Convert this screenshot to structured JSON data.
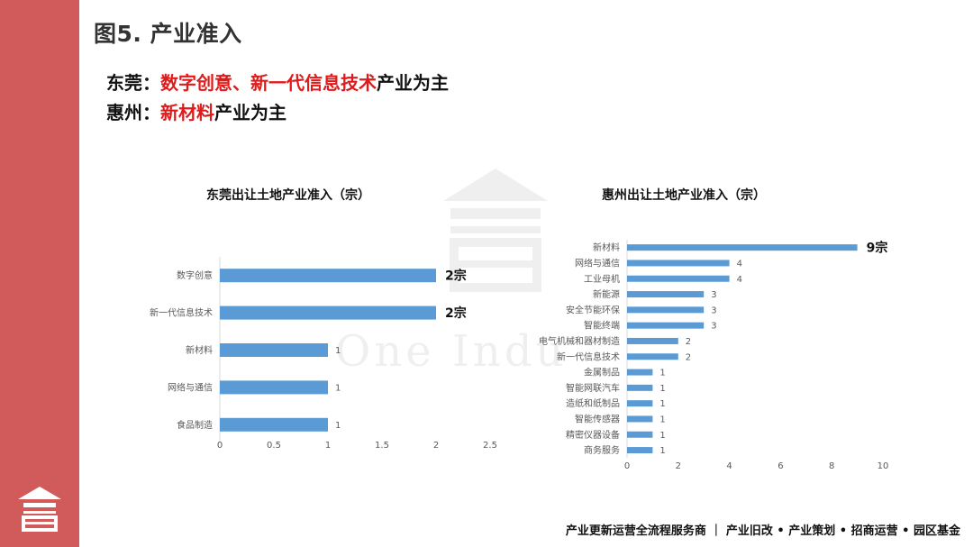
{
  "title": "图5. 产业准入",
  "intro": {
    "line1": {
      "prefix": "东莞：",
      "highlight": "数字创意、新一代信息技术",
      "suffix": "产业为主"
    },
    "line2": {
      "prefix": "惠州：",
      "highlight": "新材料",
      "suffix": "产业为主"
    }
  },
  "watermark": "One Indu",
  "footer": "产业更新运营全流程服务商 ｜ 产业旧改 • 产业策划 • 招商运营 • 园区基金",
  "colors": {
    "sidebar": "#d15a5b",
    "bar": "#5b9bd5",
    "highlight": "#e01a1a"
  },
  "chart_data": [
    {
      "type": "bar",
      "orientation": "horizontal",
      "title": "东莞出让土地产业准入（宗）",
      "categories": [
        "数字创意",
        "新一代信息技术",
        "新材料",
        "网络与通信",
        "食品制造"
      ],
      "values": [
        2,
        2,
        1,
        1,
        1
      ],
      "value_labels": [
        "2宗",
        "2宗",
        "1",
        "1",
        "1"
      ],
      "xlim": [
        0,
        2.5
      ],
      "xticks": [
        "0",
        "0.5",
        "1",
        "1.5",
        "2",
        "2.5"
      ],
      "tick_values": [
        0,
        0.5,
        1,
        1.5,
        2,
        2.5
      ],
      "grid": false
    },
    {
      "type": "bar",
      "orientation": "horizontal",
      "title": "惠州出让土地产业准入（宗）",
      "categories": [
        "新材料",
        "网络与通信",
        "工业母机",
        "新能源",
        "安全节能环保",
        "智能终端",
        "电气机械和器材制造",
        "新一代信息技术",
        "金属制品",
        "智能网联汽车",
        "造纸和纸制品",
        "智能传感器",
        "精密仪器设备",
        "商务服务"
      ],
      "values": [
        9,
        4,
        4,
        3,
        3,
        3,
        2,
        2,
        1,
        1,
        1,
        1,
        1,
        1
      ],
      "value_labels": [
        "9宗",
        "4",
        "4",
        "3",
        "3",
        "3",
        "2",
        "2",
        "1",
        "1",
        "1",
        "1",
        "1",
        "1"
      ],
      "xlim": [
        0,
        10
      ],
      "xticks": [
        "0",
        "2",
        "4",
        "6",
        "8",
        "10"
      ],
      "tick_values": [
        0,
        2,
        4,
        6,
        8,
        10
      ],
      "grid": false
    }
  ]
}
